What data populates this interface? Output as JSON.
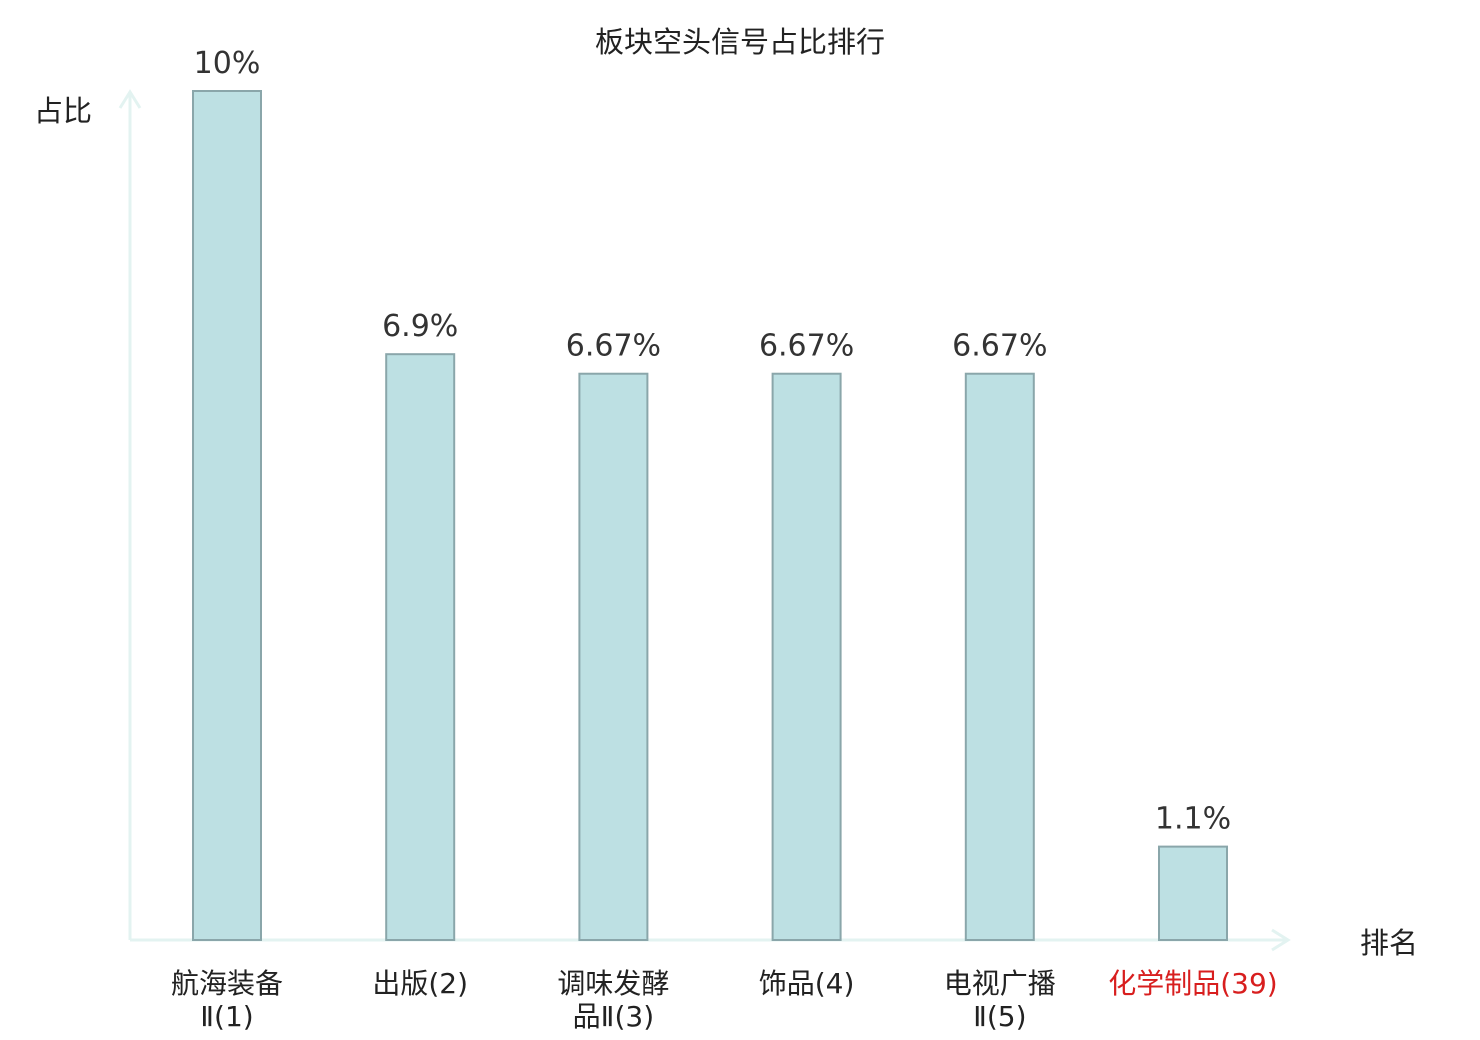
{
  "chart_data": {
    "type": "bar",
    "title": "板块空头信号占比排行",
    "ylabel": "占比",
    "xlabel": "排名",
    "ylim": [
      0,
      10
    ],
    "grid": false,
    "legend": "none",
    "categories": [
      {
        "lines": [
          "航海装备",
          "Ⅱ(1)"
        ],
        "highlight": false
      },
      {
        "lines": [
          "出版(2)"
        ],
        "highlight": false
      },
      {
        "lines": [
          "调味发酵",
          "品Ⅱ(3)"
        ],
        "highlight": false
      },
      {
        "lines": [
          "饰品(4)"
        ],
        "highlight": false
      },
      {
        "lines": [
          "电视广播",
          "Ⅱ(5)"
        ],
        "highlight": false
      },
      {
        "lines": [
          "化学制品(39)"
        ],
        "highlight": true
      }
    ],
    "values": [
      10,
      6.9,
      6.67,
      6.67,
      6.67,
      1.1
    ],
    "value_labels": [
      "10%",
      "6.9%",
      "6.67%",
      "6.67%",
      "6.67%",
      "1.1%"
    ]
  },
  "colors": {
    "bar_fill": "#bde0e3",
    "bar_stroke": "#8aa6aa",
    "axis": "#e3f3f1",
    "text": "#222222",
    "highlight": "#d81e1e"
  }
}
